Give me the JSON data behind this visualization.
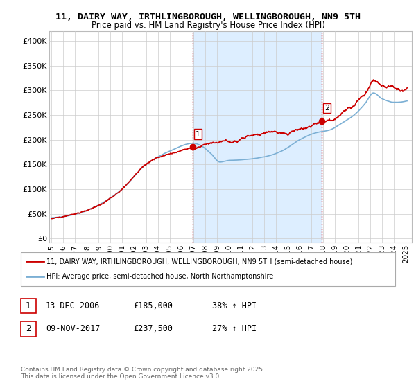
{
  "title_line1": "11, DAIRY WAY, IRTHLINGBOROUGH, WELLINGBOROUGH, NN9 5TH",
  "title_line2": "Price paid vs. HM Land Registry's House Price Index (HPI)",
  "yticks": [
    0,
    50000,
    100000,
    150000,
    200000,
    250000,
    300000,
    350000,
    400000
  ],
  "ytick_labels": [
    "£0",
    "£50K",
    "£100K",
    "£150K",
    "£200K",
    "£250K",
    "£300K",
    "£350K",
    "£400K"
  ],
  "ylim": [
    -8000,
    420000
  ],
  "xlim_start": 1994.8,
  "xlim_end": 2025.5,
  "xticks": [
    1995,
    1996,
    1997,
    1998,
    1999,
    2000,
    2001,
    2002,
    2003,
    2004,
    2005,
    2006,
    2007,
    2008,
    2009,
    2010,
    2011,
    2012,
    2013,
    2014,
    2015,
    2016,
    2017,
    2018,
    2019,
    2020,
    2021,
    2022,
    2023,
    2024,
    2025
  ],
  "property_color": "#cc0000",
  "hpi_color": "#7bafd4",
  "sale1_x": 2006.95,
  "sale1_y": 185000,
  "sale2_x": 2017.86,
  "sale2_y": 237500,
  "vline_color": "#cc0000",
  "shade_color": "#ddeeff",
  "grid_color": "#cccccc",
  "background_color": "#ffffff",
  "legend_label1": "11, DAIRY WAY, IRTHLINGBOROUGH, WELLINGBOROUGH, NN9 5TH (semi-detached house)",
  "legend_label2": "HPI: Average price, semi-detached house, North Northamptonshire",
  "annotation1_date": "13-DEC-2006",
  "annotation1_price": "£185,000",
  "annotation1_hpi": "38% ↑ HPI",
  "annotation2_date": "09-NOV-2017",
  "annotation2_price": "£237,500",
  "annotation2_hpi": "27% ↑ HPI",
  "footnote": "Contains HM Land Registry data © Crown copyright and database right 2025.\nThis data is licensed under the Open Government Licence v3.0."
}
